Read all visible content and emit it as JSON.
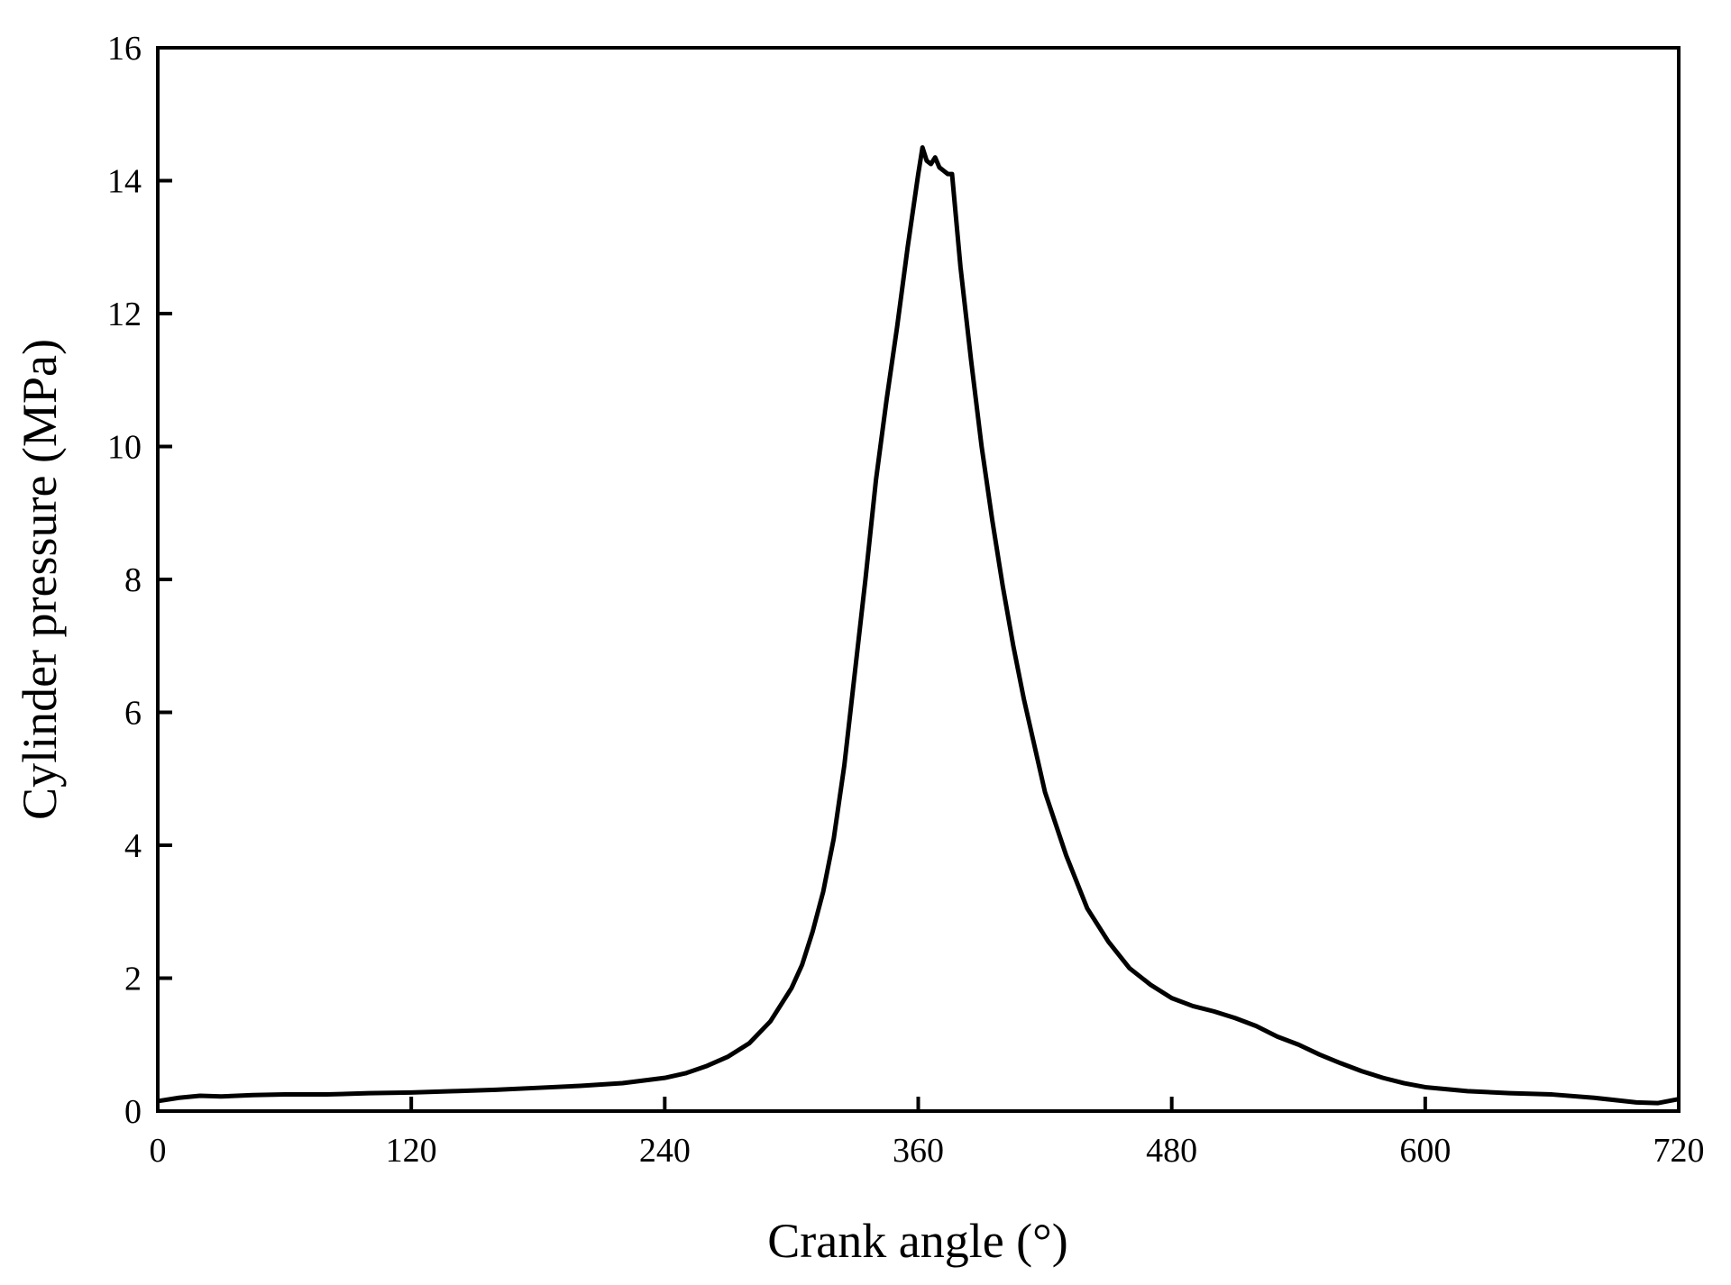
{
  "chart_data": {
    "type": "line",
    "xlabel": "Crank angle (°)",
    "ylabel": "Cylinder pressure (MPa)",
    "x": [
      0,
      10,
      20,
      30,
      45,
      60,
      80,
      100,
      120,
      140,
      160,
      180,
      200,
      220,
      240,
      250,
      260,
      270,
      280,
      290,
      300,
      305,
      310,
      315,
      320,
      325,
      330,
      335,
      340,
      345,
      350,
      355,
      360,
      362,
      364,
      366,
      368,
      370,
      372,
      374,
      376,
      378,
      380,
      385,
      390,
      395,
      400,
      405,
      410,
      415,
      420,
      430,
      440,
      450,
      460,
      470,
      480,
      490,
      500,
      510,
      520,
      530,
      540,
      550,
      560,
      570,
      580,
      590,
      600,
      620,
      640,
      660,
      680,
      700,
      710,
      720
    ],
    "values": [
      0.15,
      0.2,
      0.23,
      0.22,
      0.24,
      0.25,
      0.25,
      0.27,
      0.28,
      0.3,
      0.32,
      0.35,
      0.38,
      0.42,
      0.5,
      0.57,
      0.68,
      0.82,
      1.02,
      1.35,
      1.85,
      2.2,
      2.7,
      3.3,
      4.1,
      5.2,
      6.6,
      8.0,
      9.5,
      10.7,
      11.8,
      13.0,
      14.1,
      14.5,
      14.3,
      14.25,
      14.35,
      14.2,
      14.15,
      14.1,
      14.1,
      13.4,
      12.7,
      11.3,
      10.0,
      8.9,
      7.9,
      7.0,
      6.2,
      5.5,
      4.8,
      3.85,
      3.05,
      2.55,
      2.15,
      1.9,
      1.7,
      1.58,
      1.5,
      1.4,
      1.28,
      1.12,
      1.0,
      0.85,
      0.72,
      0.6,
      0.5,
      0.42,
      0.36,
      0.3,
      0.27,
      0.25,
      0.2,
      0.13,
      0.12,
      0.18
    ],
    "color": "#000000",
    "xlim": [
      0,
      720
    ],
    "xticks": [
      0,
      120,
      240,
      360,
      480,
      600,
      720
    ],
    "ylim": [
      0,
      16
    ],
    "yticks": [
      0,
      2,
      4,
      6,
      8,
      10,
      12,
      14,
      16
    ],
    "grid": false
  }
}
